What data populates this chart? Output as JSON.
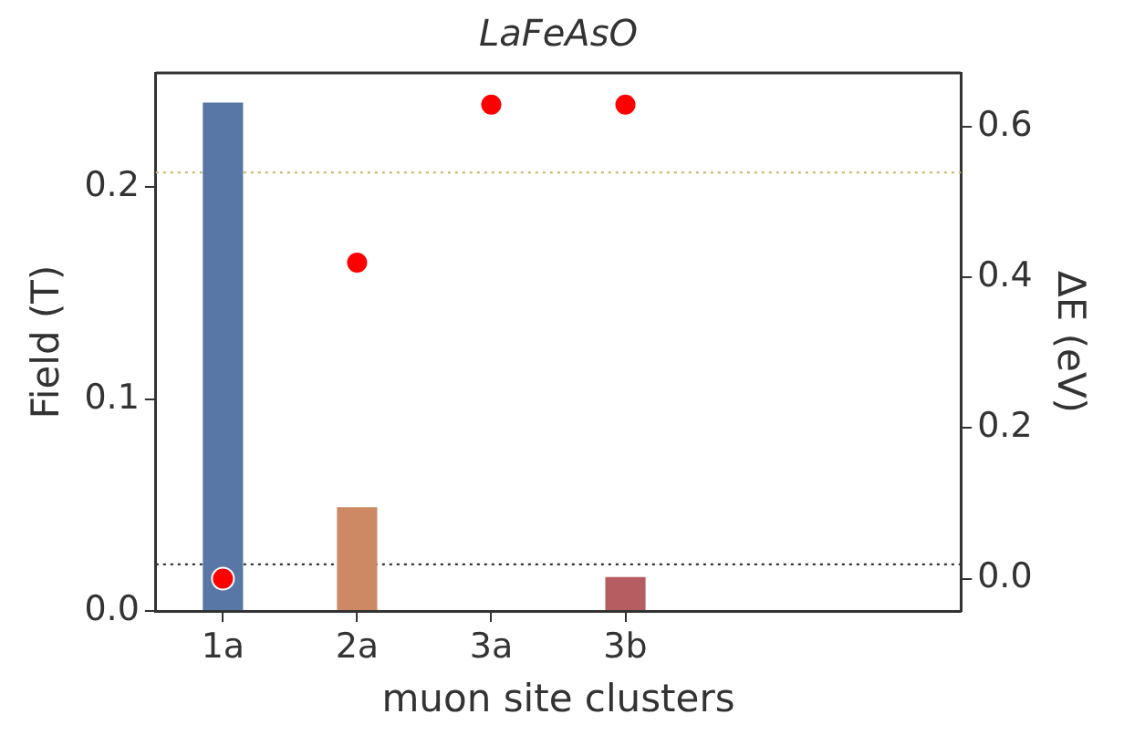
{
  "chart_data": {
    "type": "bar",
    "title": "LaFeAsO",
    "xlabel": "muon site clusters",
    "ylabel": "Field (T)",
    "y2label": "ΔE (eV)",
    "categories": [
      "1a",
      "2a",
      "3a",
      "3b",
      null,
      null
    ],
    "series": [
      {
        "colors": [
          "#5876a6",
          "#cd8963",
          "#6a9f6e",
          "#b65d62",
          "#8172b3",
          "#937860"
        ],
        "values": [
          0.24,
          0.049,
          null,
          0.016,
          null,
          null
        ]
      },
      {
        "type": "scatter",
        "axis": "y2",
        "color": "#ff0000",
        "marker": "circle",
        "values": [
          0.0,
          0.42,
          0.63,
          0.63,
          null,
          null
        ]
      }
    ],
    "ylim": [
      0,
      0.254
    ],
    "yticks": [
      {
        "value": 0,
        "label": "0.0"
      },
      0.1,
      0.2
    ],
    "y2lim": [
      -0.043,
      0.672
    ],
    "y2ticks": [
      {
        "value": 0,
        "label": "0.0"
      },
      0.2,
      0.4,
      0.6
    ],
    "ref_lines": [
      {
        "axis": "y",
        "value": 0.207,
        "color": "#ccb974",
        "line_style": "dotted"
      },
      {
        "axis": "y",
        "value": 0.022,
        "color": "#333333",
        "line_style": "dotted"
      }
    ],
    "grid": false,
    "legend": false
  }
}
